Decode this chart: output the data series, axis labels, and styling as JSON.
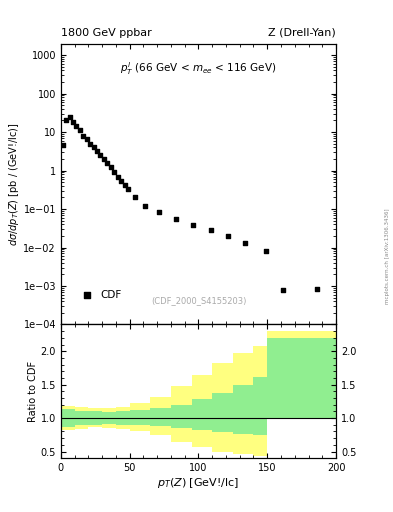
{
  "title_left": "1800 GeV ppbar",
  "title_right": "Z (Drell-Yan)",
  "annotation": "p$_T^l$ (66 GeV < m$_{ee}$ < 116 GeV)",
  "ref_label": "(CDF_2000_S4155203)",
  "legend_label": "CDF",
  "ylabel_main": "dσ/dp_T(Z) [pb / (GeV!/lc)]",
  "ylabel_ratio": "Ratio to CDF",
  "xlabel": "p_T(Z) [GeV!/lc]",
  "watermark": "mcplots.cern.ch [arXiv:1306.3436]",
  "data_x": [
    1.25,
    3.75,
    6.25,
    8.75,
    11.25,
    13.75,
    16.25,
    18.75,
    21.25,
    23.75,
    26.25,
    28.75,
    31.25,
    33.75,
    36.25,
    38.75,
    41.25,
    43.75,
    46.25,
    48.75,
    53.75,
    61.25,
    71.25,
    83.75,
    96.25,
    108.75,
    121.25,
    133.75,
    148.75,
    161.25,
    186.25
  ],
  "data_y": [
    4.5,
    20.0,
    25.0,
    18.0,
    14.0,
    11.0,
    8.0,
    6.5,
    5.0,
    4.0,
    3.2,
    2.5,
    2.0,
    1.6,
    1.2,
    0.9,
    0.7,
    0.55,
    0.42,
    0.33,
    0.2,
    0.12,
    0.085,
    0.055,
    0.038,
    0.028,
    0.02,
    0.013,
    0.0082,
    0.0008,
    0.00085
  ],
  "xlim": [
    0,
    200
  ],
  "ylim_main": [
    0.0001,
    2000
  ],
  "ylim_ratio": [
    0.4,
    2.4
  ],
  "ratio_yticks": [
    0.5,
    1.0,
    1.5,
    2.0
  ],
  "green_steps_x": [
    0,
    10,
    20,
    30,
    40,
    50,
    65,
    80,
    95,
    110,
    125,
    140,
    150,
    200
  ],
  "green_steps_lo": [
    0.87,
    0.89,
    0.9,
    0.91,
    0.9,
    0.9,
    0.88,
    0.85,
    0.82,
    0.79,
    0.76,
    0.74,
    1.0,
    1.0
  ],
  "green_steps_hi": [
    1.13,
    1.11,
    1.1,
    1.09,
    1.1,
    1.12,
    1.15,
    1.2,
    1.28,
    1.38,
    1.5,
    1.62,
    2.2,
    2.2
  ],
  "yellow_steps_x": [
    0,
    10,
    20,
    30,
    40,
    50,
    65,
    80,
    95,
    110,
    125,
    140,
    150,
    200
  ],
  "yellow_steps_lo": [
    0.82,
    0.84,
    0.86,
    0.85,
    0.83,
    0.8,
    0.74,
    0.65,
    0.57,
    0.5,
    0.47,
    0.44,
    1.0,
    1.0
  ],
  "yellow_steps_hi": [
    1.18,
    1.17,
    1.15,
    1.15,
    1.17,
    1.22,
    1.32,
    1.48,
    1.65,
    1.82,
    1.97,
    2.08,
    2.3,
    2.3
  ],
  "background_color": "#ffffff",
  "data_color": "#000000",
  "green_color": "#90ee90",
  "yellow_color": "#ffff80"
}
